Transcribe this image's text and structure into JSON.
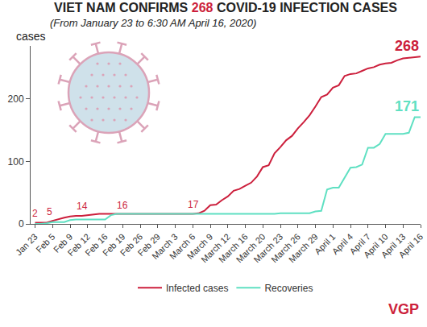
{
  "chart_data": {
    "type": "line",
    "title": "VIET NAM CONFIRMS 268 COVID-19 INFECTION CASES",
    "subtitle": "(From January 23 to 6:30 AM April 16, 2020)",
    "y_label": "cases",
    "source": "VGP",
    "categories": [
      "Jan 23",
      null,
      null,
      "Feb 5",
      null,
      null,
      "Feb 9",
      null,
      null,
      "Feb 12",
      null,
      null,
      "Feb 16",
      null,
      null,
      "Feb 19",
      null,
      null,
      "Feb 26",
      null,
      null,
      "Feb 29",
      null,
      null,
      "March 3",
      null,
      null,
      "March 6",
      null,
      null,
      "March 9",
      null,
      null,
      "March 12",
      null,
      null,
      "March 16",
      null,
      null,
      "March 20",
      null,
      null,
      "March 23",
      null,
      null,
      "March 26",
      null,
      null,
      "March 29",
      null,
      null,
      "April 1",
      null,
      null,
      "April 4",
      null,
      null,
      "April 7",
      null,
      null,
      "April 10",
      null,
      null,
      "April 13",
      null,
      null,
      "April 16"
    ],
    "series": [
      {
        "name": "Infected cases",
        "color": "#cc1f3c",
        "values": [
          2,
          2,
          2,
          5,
          8,
          10,
          12,
          13,
          13,
          14,
          15,
          16,
          16,
          16,
          16,
          16,
          16,
          16,
          16,
          16,
          16,
          16,
          16,
          16,
          16,
          16,
          16,
          16,
          17,
          21,
          30,
          31,
          38,
          44,
          53,
          56,
          61,
          66,
          76,
          91,
          94,
          113,
          123,
          134,
          141,
          153,
          163,
          174,
          188,
          203,
          207,
          218,
          222,
          237,
          240,
          241,
          245,
          249,
          251,
          255,
          257,
          258,
          262,
          265,
          266,
          267,
          268
        ]
      },
      {
        "name": "Recoveries",
        "color": "#5fe0c2",
        "values": [
          0,
          0,
          1,
          3,
          3,
          3,
          6,
          7,
          7,
          7,
          7,
          7,
          7,
          14,
          16,
          16,
          16,
          16,
          16,
          16,
          16,
          16,
          16,
          16,
          16,
          16,
          16,
          16,
          16,
          16,
          16,
          16,
          16,
          16,
          16,
          16,
          16,
          16,
          16,
          16,
          16,
          16,
          17,
          17,
          17,
          17,
          17,
          17,
          20,
          21,
          55,
          58,
          58,
          75,
          90,
          91,
          95,
          122,
          122,
          128,
          144,
          144,
          144,
          144,
          146,
          171,
          171
        ]
      }
    ],
    "ylim": [
      0,
      285
    ],
    "yticks": [
      0,
      100,
      200
    ],
    "grid": false,
    "legend": "bottom",
    "annotations": [
      {
        "series": "Infected cases",
        "index": 0,
        "text": "2"
      },
      {
        "series": "Infected cases",
        "index": 3,
        "text": "5"
      },
      {
        "series": "Infected cases",
        "index": 9,
        "text": "14"
      },
      {
        "series": "Infected cases",
        "index": 15,
        "text": "16"
      },
      {
        "series": "Infected cases",
        "index": 28,
        "text": "17"
      },
      {
        "series": "Infected cases",
        "index": 66,
        "text": "268"
      },
      {
        "series": "Recoveries",
        "index": 66,
        "text": "171"
      }
    ]
  }
}
